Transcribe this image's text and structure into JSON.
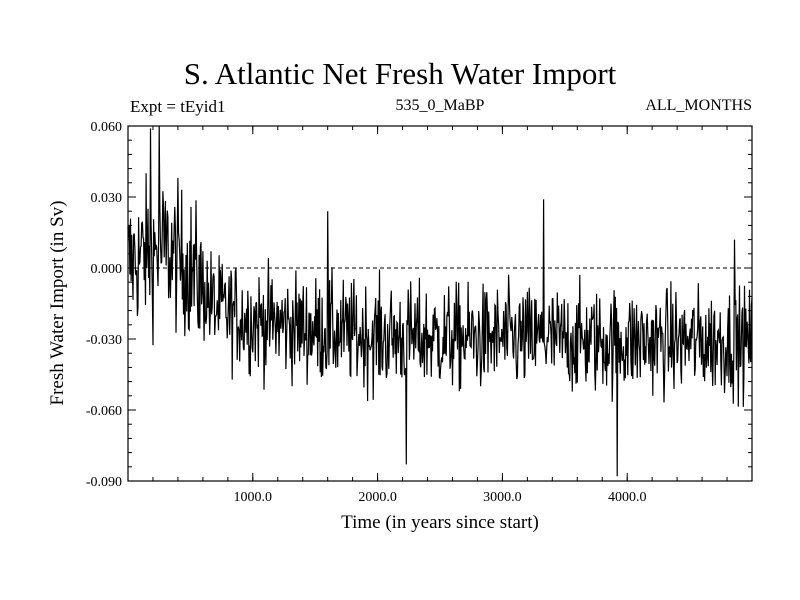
{
  "chart_data": {
    "type": "line",
    "title": "S. Atlantic Net Fresh Water Import",
    "subtitle_left": "Expt = tEyid1",
    "subtitle_center": "535_0_MaBP",
    "subtitle_right": "ALL_MONTHS",
    "xlabel": "Time (in years since start)",
    "ylabel": "Fresh Water Import (in Sv)",
    "xlim": [
      0,
      5000
    ],
    "ylim": [
      -0.09,
      0.06
    ],
    "x_ticks": [
      1000,
      2000,
      3000,
      4000
    ],
    "x_tick_labels": [
      "1000.0",
      "2000.0",
      "3000.0",
      "4000.0"
    ],
    "y_ticks": [
      0.06,
      0.03,
      0.0,
      -0.03,
      -0.06,
      -0.09
    ],
    "y_tick_labels": [
      "0.060",
      "0.030",
      "0.000",
      "-0.030",
      "-0.060",
      "-0.090"
    ],
    "reference_line": {
      "y": 0.0,
      "style": "dashed"
    },
    "series": [
      {
        "name": "Fresh Water Import",
        "color": "#000000",
        "x_step": 5,
        "noise_amplitude": 0.011,
        "envelope": [
          {
            "x": 0,
            "mean": 0.002
          },
          {
            "x": 150,
            "mean": 0.006
          },
          {
            "x": 300,
            "mean": 0.008
          },
          {
            "x": 500,
            "mean": 0.0
          },
          {
            "x": 700,
            "mean": -0.017
          },
          {
            "x": 1000,
            "mean": -0.022
          },
          {
            "x": 1500,
            "mean": -0.026
          },
          {
            "x": 2000,
            "mean": -0.029
          },
          {
            "x": 3000,
            "mean": -0.03
          },
          {
            "x": 4000,
            "mean": -0.031
          },
          {
            "x": 5000,
            "mean": -0.031
          }
        ],
        "peaks": [
          {
            "x": 180,
            "y": 0.059
          },
          {
            "x": 250,
            "y": 0.061
          },
          {
            "x": 2230,
            "y": -0.083
          },
          {
            "x": 3330,
            "y": 0.029
          },
          {
            "x": 3920,
            "y": -0.088
          },
          {
            "x": 1600,
            "y": 0.024
          },
          {
            "x": 4860,
            "y": 0.012
          }
        ]
      }
    ]
  }
}
